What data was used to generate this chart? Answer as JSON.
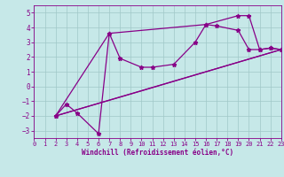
{
  "xlabel": "Windchill (Refroidissement éolien,°C)",
  "xlim": [
    0,
    23
  ],
  "ylim": [
    -3.5,
    5.5
  ],
  "xticks": [
    0,
    1,
    2,
    3,
    4,
    5,
    6,
    7,
    8,
    9,
    10,
    11,
    12,
    13,
    14,
    15,
    16,
    17,
    18,
    19,
    20,
    21,
    22,
    23
  ],
  "yticks": [
    -3,
    -2,
    -1,
    0,
    1,
    2,
    3,
    4,
    5
  ],
  "bg_color": "#c6e8e8",
  "line_color": "#880088",
  "grid_color": "#a0c8c8",
  "series_markers": [
    {
      "x": [
        2,
        3,
        4,
        6,
        7,
        8,
        10,
        11,
        13,
        15,
        16,
        17,
        19,
        20,
        21,
        22,
        23
      ],
      "y": [
        -2.0,
        -1.2,
        -1.8,
        -3.2,
        3.6,
        1.9,
        1.3,
        1.3,
        1.5,
        3.0,
        4.2,
        4.1,
        3.8,
        2.5,
        2.5,
        2.6,
        2.5
      ]
    },
    {
      "x": [
        2,
        7,
        16,
        19,
        20,
        21,
        22,
        23
      ],
      "y": [
        -2.0,
        3.6,
        4.2,
        4.8,
        4.8,
        2.5,
        2.6,
        2.5
      ]
    }
  ],
  "series_lines": [
    {
      "x": [
        2,
        23
      ],
      "y": [
        -2.0,
        2.5
      ]
    },
    {
      "x": [
        2,
        10,
        23
      ],
      "y": [
        -2.0,
        -0.3,
        2.5
      ]
    }
  ],
  "line_width": 0.9,
  "marker_size": 3.5
}
